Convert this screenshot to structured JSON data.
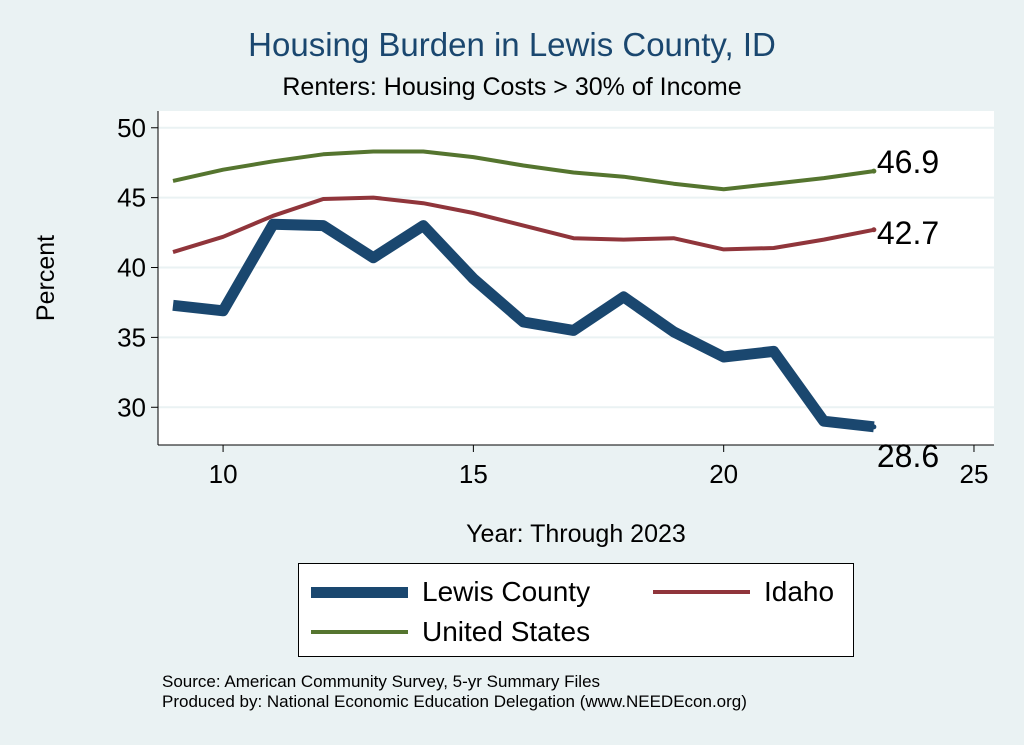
{
  "title": "Housing Burden in Lewis County, ID",
  "subtitle": "Renters: Housing Costs > 30% of Income",
  "source_lines": [
    "Source: American Community Survey, 5-yr Summary Files",
    "Produced by: National Economic Education Delegation (www.NEEDEcon.org)"
  ],
  "colors": {
    "background": "#eaf2f3",
    "plot_background": "#ffffff",
    "lewis": "#1a476f",
    "idaho": "#90353b",
    "us": "#55752f"
  },
  "chart_data": {
    "type": "line",
    "title": "Housing Burden in Lewis County, ID",
    "subtitle": "Renters: Housing Costs > 30% of Income",
    "xlabel": "Year: Through 2023",
    "ylabel": "Percent",
    "xlim": [
      8.7,
      25.4
    ],
    "ylim": [
      27.3,
      51.2
    ],
    "xticks": [
      10,
      15,
      20,
      25
    ],
    "yticks": [
      30,
      35,
      40,
      45,
      50
    ],
    "grid": true,
    "legend_position": "bottom",
    "x": [
      9,
      10,
      11,
      12,
      13,
      14,
      15,
      16,
      17,
      18,
      19,
      20,
      21,
      22,
      23
    ],
    "series": [
      {
        "name": "Lewis County",
        "color": "#1a476f",
        "values": [
          37.3,
          36.9,
          43.1,
          43.0,
          40.7,
          43.0,
          39.2,
          36.1,
          35.5,
          37.9,
          35.4,
          33.6,
          34.0,
          29.0,
          28.6
        ],
        "end_label": "28.6"
      },
      {
        "name": "Idaho",
        "color": "#90353b",
        "values": [
          41.1,
          42.2,
          43.7,
          44.9,
          45.0,
          44.6,
          43.9,
          43.0,
          42.1,
          42.0,
          42.1,
          41.3,
          41.4,
          42.0,
          42.7
        ],
        "end_label": "42.7"
      },
      {
        "name": "United States",
        "color": "#55752f",
        "values": [
          46.2,
          47.0,
          47.6,
          48.1,
          48.3,
          48.3,
          47.9,
          47.3,
          46.8,
          46.5,
          46.0,
          45.6,
          46.0,
          46.4,
          46.9
        ],
        "end_label": "46.9"
      }
    ]
  }
}
